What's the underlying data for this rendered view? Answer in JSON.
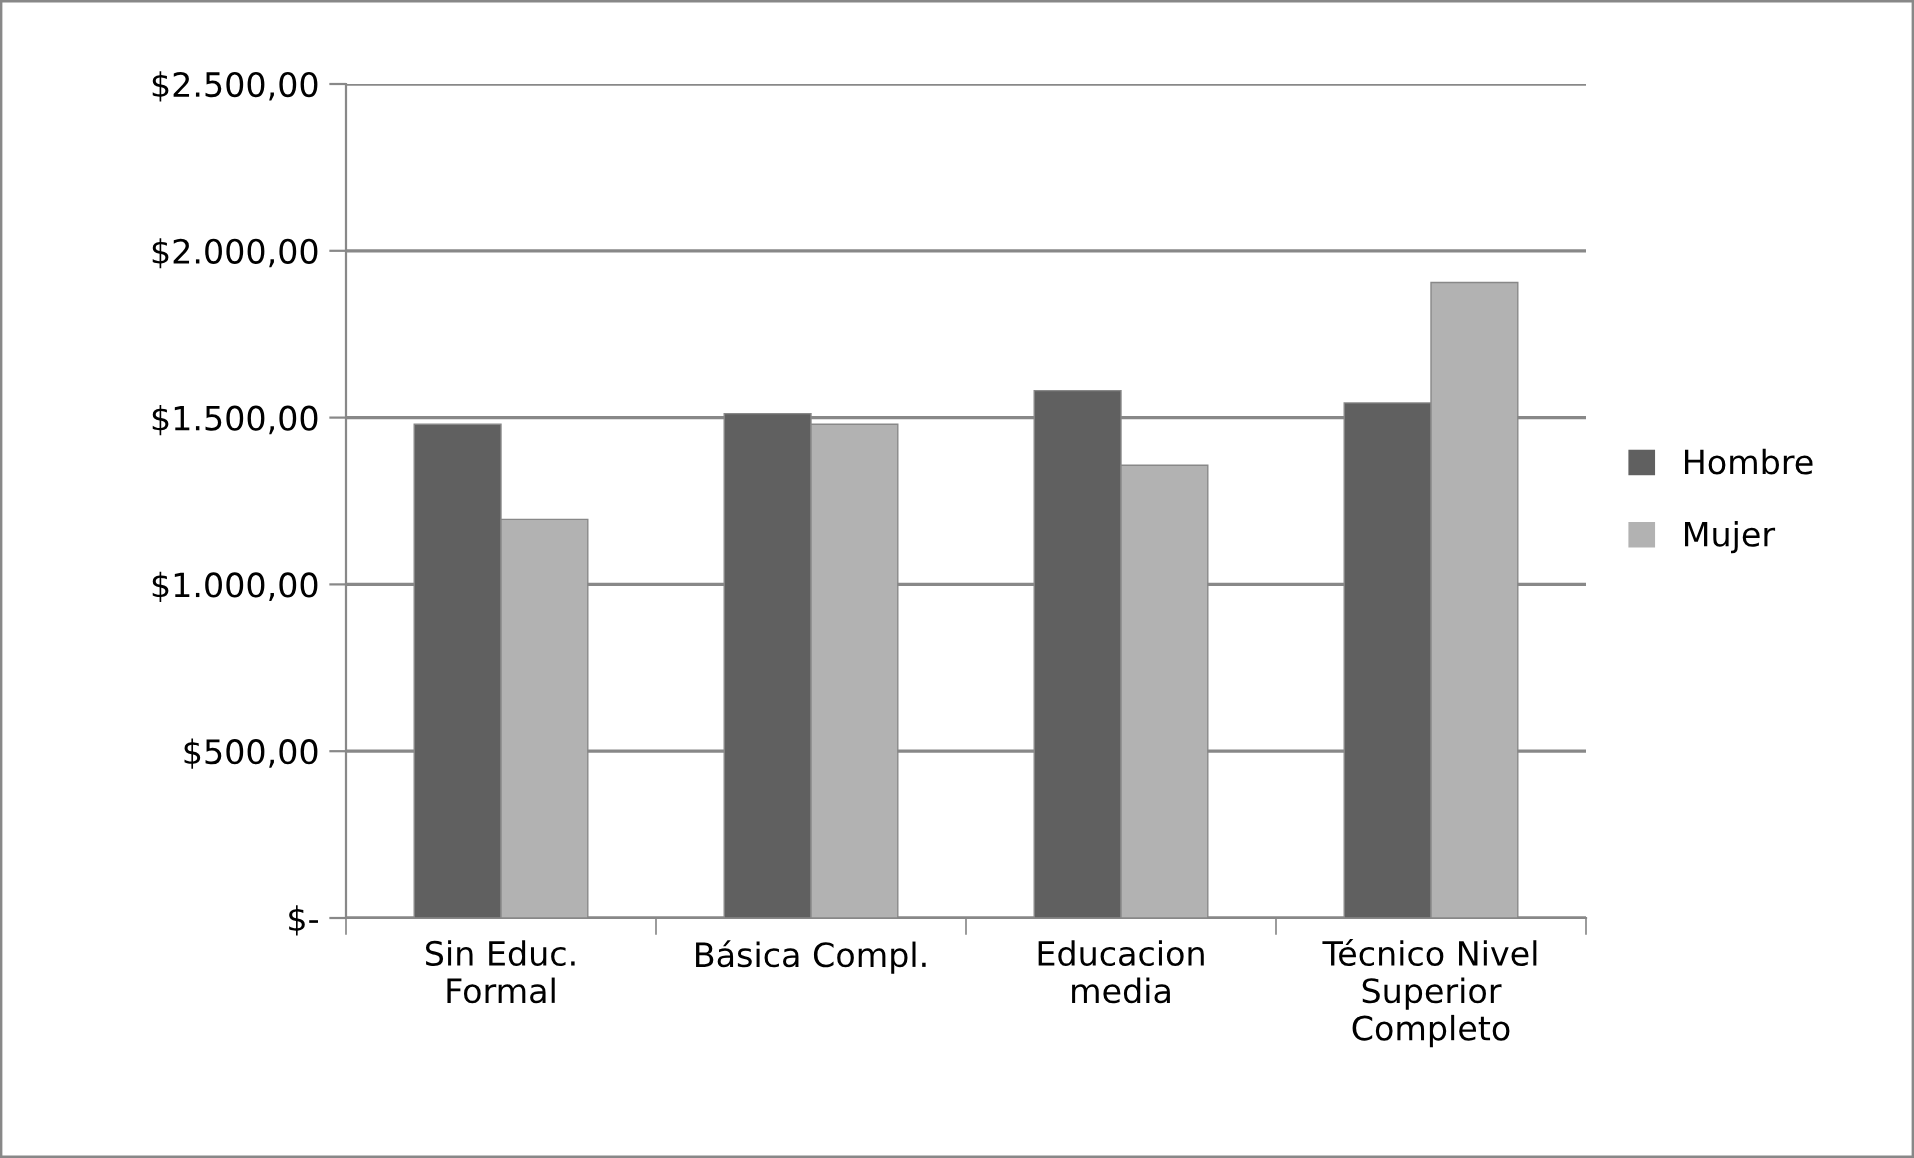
{
  "chart_data": {
    "type": "bar",
    "categories": [
      "Sin Educ.\nFormal",
      "Básica Compl.",
      "Educacion\nmedia",
      "Técnico Nivel\nSuperior\nCompleto"
    ],
    "series": [
      {
        "name": "Hombre",
        "color": "#606060",
        "values": [
          1480,
          1512,
          1581,
          1544
        ]
      },
      {
        "name": "Mujer",
        "color": "#b2b2b2",
        "values": [
          1195,
          1480,
          1357,
          1905
        ]
      }
    ],
    "ylim": [
      0,
      2500
    ],
    "yticks": [
      {
        "value": 0,
        "label": "$-"
      },
      {
        "value": 500,
        "label": "$500,00"
      },
      {
        "value": 1000,
        "label": "$1.000,00"
      },
      {
        "value": 1500,
        "label": "$1.500,00"
      },
      {
        "value": 2000,
        "label": "$2.000,00"
      },
      {
        "value": 2500,
        "label": "$2.500,00"
      }
    ],
    "grid": "y",
    "legend": "right"
  }
}
